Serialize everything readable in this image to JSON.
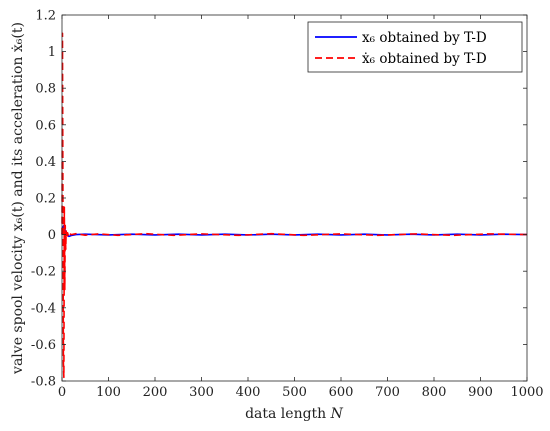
{
  "chart_data": {
    "type": "line",
    "title": "",
    "xlabel": "data length",
    "xlabel_var": "N",
    "ylabel": "valve spool velocity x₆(t) and its acceleration ẋ₆(t)",
    "xlim": [
      0,
      1000
    ],
    "ylim": [
      -0.8,
      1.2
    ],
    "x_ticks": [
      0,
      100,
      200,
      300,
      400,
      500,
      600,
      700,
      800,
      900,
      1000
    ],
    "y_ticks": [
      -0.8,
      -0.6,
      -0.4,
      -0.2,
      0,
      0.2,
      0.4,
      0.6,
      0.8,
      1,
      1.2
    ],
    "grid": false,
    "legend_position": "top-right",
    "series": [
      {
        "name": "x₆ obtained by T-D",
        "color": "#0000ff",
        "style": "solid",
        "x": [
          0,
          2,
          4,
          6,
          8,
          10,
          15,
          20,
          30,
          50,
          100,
          150,
          200,
          250,
          300,
          350,
          400,
          450,
          500,
          550,
          600,
          650,
          700,
          750,
          800,
          850,
          900,
          950,
          1000
        ],
        "y": [
          0,
          0.04,
          0.05,
          0.03,
          0.01,
          0.0,
          -0.01,
          -0.005,
          0.0,
          0.002,
          -0.002,
          0.002,
          -0.002,
          0.002,
          -0.002,
          0.002,
          -0.002,
          0.002,
          -0.002,
          0.002,
          -0.002,
          0.002,
          -0.002,
          0.002,
          -0.002,
          0.002,
          -0.002,
          0.002,
          0.0
        ]
      },
      {
        "name": "ẋ₆ obtained by T-D",
        "color": "#ff0000",
        "style": "dashed",
        "x": [
          0,
          1,
          2,
          3,
          4,
          5,
          6,
          7,
          8,
          9,
          10,
          12,
          14,
          16,
          20,
          30,
          50,
          80,
          120,
          180,
          240,
          300,
          380,
          450,
          520,
          600,
          680,
          760,
          840,
          920,
          1000
        ],
        "y": [
          0,
          1.1,
          0.2,
          -0.7,
          -0.78,
          0.15,
          -0.3,
          0.05,
          -0.08,
          0.02,
          -0.02,
          0.01,
          -0.01,
          0.005,
          0.0,
          0.005,
          -0.003,
          0.004,
          -0.004,
          0.005,
          -0.004,
          0.004,
          -0.004,
          0.005,
          -0.004,
          0.004,
          -0.004,
          0.004,
          -0.004,
          0.004,
          0.0
        ]
      }
    ]
  }
}
